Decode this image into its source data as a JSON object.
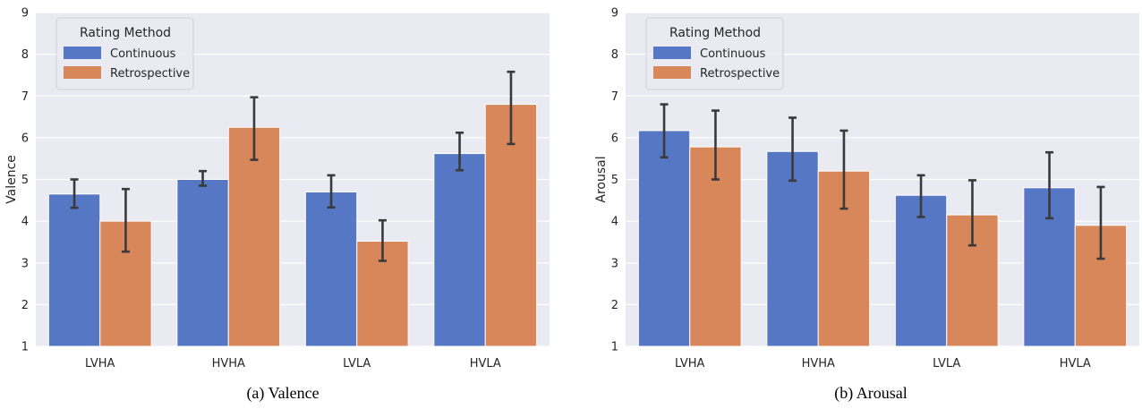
{
  "chart_data": [
    {
      "type": "bar",
      "caption": "(a) Valence",
      "ylabel": "Valence",
      "xlabel": "",
      "ylim": [
        1,
        9
      ],
      "yticks": [
        "1",
        "2",
        "3",
        "4",
        "5",
        "6",
        "7",
        "8",
        "9"
      ],
      "categories": [
        "LVHA",
        "HVHA",
        "LVLA",
        "HVLA"
      ],
      "grid": true,
      "legend": {
        "title": "Rating Method",
        "placement": "top-left"
      },
      "series": [
        {
          "name": "Continuous",
          "color": "#5577c4",
          "values": [
            4.65,
            5.0,
            4.7,
            5.62
          ],
          "error_low": [
            4.32,
            4.85,
            4.33,
            5.22
          ],
          "error_high": [
            5.0,
            5.2,
            5.1,
            6.12
          ]
        },
        {
          "name": "Retrospective",
          "color": "#d8875a",
          "values": [
            4.0,
            6.25,
            3.52,
            6.8
          ],
          "error_low": [
            3.27,
            5.47,
            3.05,
            5.85
          ],
          "error_high": [
            4.77,
            6.97,
            4.02,
            7.58
          ]
        }
      ]
    },
    {
      "type": "bar",
      "caption": "(b) Arousal",
      "ylabel": "Arousal",
      "xlabel": "",
      "ylim": [
        1,
        9
      ],
      "yticks": [
        "1",
        "2",
        "3",
        "4",
        "5",
        "6",
        "7",
        "8",
        "9"
      ],
      "categories": [
        "LVHA",
        "HVHA",
        "LVLA",
        "HVLA"
      ],
      "grid": true,
      "legend": {
        "title": "Rating Method",
        "placement": "top-left"
      },
      "series": [
        {
          "name": "Continuous",
          "color": "#5577c4",
          "values": [
            6.17,
            5.67,
            4.62,
            4.8
          ],
          "error_low": [
            5.53,
            4.97,
            4.1,
            4.07
          ],
          "error_high": [
            6.8,
            6.48,
            5.1,
            5.65
          ]
        },
        {
          "name": "Retrospective",
          "color": "#d8875a",
          "values": [
            5.78,
            5.2,
            4.15,
            3.9
          ],
          "error_low": [
            5.0,
            4.3,
            3.42,
            3.1
          ],
          "error_high": [
            6.65,
            6.17,
            4.98,
            4.82
          ]
        }
      ]
    }
  ]
}
